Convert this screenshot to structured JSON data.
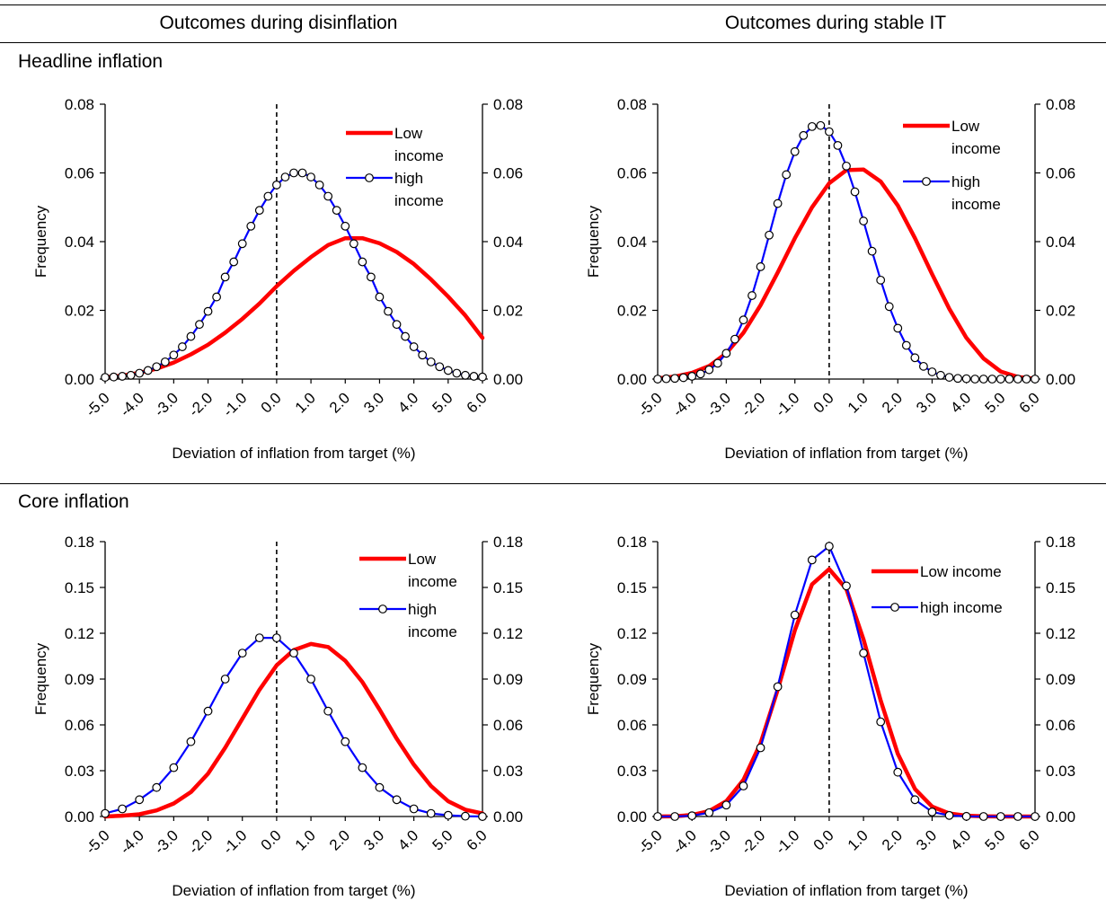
{
  "headers": {
    "left": "Outcomes during disinflation",
    "right": "Outcomes during stable IT"
  },
  "row_labels": {
    "headline": "Headline inflation",
    "core": "Core inflation"
  },
  "colors": {
    "low_income": "#ff0000",
    "high_income": "#0000ff",
    "marker_fill": "#ffffff",
    "axis": "#000000"
  },
  "chart_data": [
    {
      "type": "line",
      "panel": "headline-disinflation",
      "xlabel": "Deviation of inflation from target (%)",
      "ylabel": "Frequency",
      "ylim": [
        0,
        0.08
      ],
      "yticks": [
        "0.00",
        "0.02",
        "0.04",
        "0.06",
        "0.08"
      ],
      "xlim": [
        -5.0,
        6.0
      ],
      "xticks": [
        "-5.0",
        "-4.0",
        "-3.0",
        "-2.0",
        "-1.0",
        "0.0",
        "1.0",
        "2.0",
        "3.0",
        "4.0",
        "5.0",
        "6.0"
      ],
      "target_line_x": 0.0,
      "legend": [
        "Low income",
        "high income"
      ],
      "series": [
        {
          "name": "Low income",
          "x": [
            -5.0,
            -4.5,
            -4.0,
            -3.5,
            -3.0,
            -2.5,
            -2.0,
            -1.5,
            -1.0,
            -0.5,
            0.0,
            0.5,
            1.0,
            1.5,
            2.0,
            2.5,
            3.0,
            3.5,
            4.0,
            4.5,
            5.0,
            5.5,
            6.0
          ],
          "y": [
            0.0005,
            0.001,
            0.0018,
            0.003,
            0.0048,
            0.0072,
            0.01,
            0.0135,
            0.0175,
            0.022,
            0.027,
            0.0315,
            0.0355,
            0.039,
            0.041,
            0.041,
            0.0395,
            0.037,
            0.0335,
            0.029,
            0.024,
            0.0185,
            0.012
          ]
        },
        {
          "name": "high income",
          "x": [
            -5.0,
            -4.75,
            -4.5,
            -4.25,
            -4.0,
            -3.75,
            -3.5,
            -3.25,
            -3.0,
            -2.75,
            -2.5,
            -2.25,
            -2.0,
            -1.75,
            -1.5,
            -1.25,
            -1.0,
            -0.75,
            -0.5,
            -0.25,
            0.0,
            0.25,
            0.5,
            0.75,
            1.0,
            1.25,
            1.5,
            1.75,
            2.0,
            2.25,
            2.5,
            2.75,
            3.0,
            3.25,
            3.5,
            3.75,
            4.0,
            4.25,
            4.5,
            4.75,
            5.0,
            5.25,
            5.5,
            5.75,
            6.0
          ],
          "y": [
            0.0005,
            0.0006,
            0.0008,
            0.0011,
            0.0017,
            0.0025,
            0.0036,
            0.005,
            0.007,
            0.0094,
            0.0124,
            0.0159,
            0.0197,
            0.0239,
            0.0297,
            0.0341,
            0.0394,
            0.0445,
            0.0491,
            0.0532,
            0.0565,
            0.0588,
            0.06,
            0.06,
            0.0588,
            0.0565,
            0.0532,
            0.0491,
            0.0445,
            0.0394,
            0.0341,
            0.0297,
            0.0239,
            0.0197,
            0.0159,
            0.0124,
            0.0094,
            0.007,
            0.005,
            0.0036,
            0.0025,
            0.0017,
            0.0011,
            0.0008,
            0.0006
          ]
        }
      ]
    },
    {
      "type": "line",
      "panel": "headline-stable",
      "xlabel": "Deviation of inflation from target (%)",
      "ylabel": "Frequency",
      "ylim": [
        0,
        0.08
      ],
      "yticks": [
        "0.00",
        "0.02",
        "0.04",
        "0.06",
        "0.08"
      ],
      "xlim": [
        -5.0,
        6.0
      ],
      "xticks": [
        "-5.0",
        "-4.0",
        "-3.0",
        "-2.0",
        "-1.0",
        "0.0",
        "1.0",
        "2.0",
        "3.0",
        "4.0",
        "5.0",
        "6.0"
      ],
      "target_line_x": 0.0,
      "legend": [
        "Low income",
        "high income"
      ],
      "series": [
        {
          "name": "Low income",
          "x": [
            -5.0,
            -4.5,
            -4.0,
            -3.5,
            -3.0,
            -2.5,
            -2.0,
            -1.5,
            -1.0,
            -0.5,
            0.0,
            0.5,
            1.0,
            1.5,
            2.0,
            2.5,
            3.0,
            3.5,
            4.0,
            4.5,
            5.0,
            5.5,
            6.0
          ],
          "y": [
            0.0002,
            0.0007,
            0.0018,
            0.0038,
            0.0075,
            0.0135,
            0.0215,
            0.031,
            0.041,
            0.05,
            0.057,
            0.0608,
            0.061,
            0.0575,
            0.0505,
            0.041,
            0.0305,
            0.0205,
            0.012,
            0.006,
            0.0022,
            0.0006,
            0.0001
          ]
        },
        {
          "name": "high income",
          "x": [
            -5.0,
            -4.75,
            -4.5,
            -4.25,
            -4.0,
            -3.75,
            -3.5,
            -3.25,
            -3.0,
            -2.75,
            -2.5,
            -2.25,
            -2.0,
            -1.75,
            -1.5,
            -1.25,
            -1.0,
            -0.75,
            -0.5,
            -0.25,
            0.0,
            0.25,
            0.5,
            0.75,
            1.0,
            1.25,
            1.5,
            1.75,
            2.0,
            2.25,
            2.5,
            2.75,
            3.0,
            3.25,
            3.5,
            3.75,
            4.0,
            4.25,
            4.5,
            4.75,
            5.0,
            5.25,
            5.5,
            5.75,
            6.0
          ],
          "y": [
            0.0,
            0.0001,
            0.0002,
            0.0004,
            0.0008,
            0.0015,
            0.0027,
            0.0046,
            0.0075,
            0.0116,
            0.0172,
            0.0243,
            0.0327,
            0.0419,
            0.0511,
            0.0595,
            0.0662,
            0.0709,
            0.0735,
            0.0738,
            0.072,
            0.068,
            0.062,
            0.0545,
            0.046,
            0.0372,
            0.0288,
            0.0211,
            0.0148,
            0.0098,
            0.0062,
            0.0037,
            0.0021,
            0.0011,
            0.0005,
            0.0002,
            0.0001,
            0.0,
            0.0,
            0.0,
            0.0,
            0.0,
            0.0,
            0.0,
            0.0
          ]
        }
      ]
    },
    {
      "type": "line",
      "panel": "core-disinflation",
      "xlabel": "Deviation of inflation from target (%)",
      "ylabel": "Frequency",
      "ylim": [
        0,
        0.18
      ],
      "yticks": [
        "0.00",
        "0.03",
        "0.06",
        "0.09",
        "0.12",
        "0.15",
        "0.18"
      ],
      "xlim": [
        -5.0,
        6.0
      ],
      "xticks": [
        "-5.0",
        "-4.0",
        "-3.0",
        "-2.0",
        "-1.0",
        "0.0",
        "1.0",
        "2.0",
        "3.0",
        "4.0",
        "5.0",
        "6.0"
      ],
      "target_line_x": 0.0,
      "legend": [
        "Low income",
        "high income"
      ],
      "series": [
        {
          "name": "Low income",
          "x": [
            -5.0,
            -4.5,
            -4.0,
            -3.5,
            -3.0,
            -2.5,
            -2.0,
            -1.5,
            -1.0,
            -0.5,
            0.0,
            0.5,
            1.0,
            1.5,
            2.0,
            2.5,
            3.0,
            3.5,
            4.0,
            4.5,
            5.0,
            5.5,
            6.0
          ],
          "y": [
            0.0,
            0.0005,
            0.0015,
            0.004,
            0.0085,
            0.016,
            0.028,
            0.045,
            0.064,
            0.083,
            0.099,
            0.109,
            0.113,
            0.111,
            0.102,
            0.088,
            0.07,
            0.051,
            0.034,
            0.02,
            0.01,
            0.0045,
            0.002
          ]
        },
        {
          "name": "high income",
          "x": [
            -5.0,
            -4.5,
            -4.0,
            -3.5,
            -3.0,
            -2.5,
            -2.0,
            -1.5,
            -1.0,
            -0.5,
            0.0,
            0.5,
            1.0,
            1.5,
            2.0,
            2.5,
            3.0,
            3.5,
            4.0,
            4.5,
            5.0,
            5.5,
            6.0
          ],
          "y": [
            0.002,
            0.005,
            0.011,
            0.019,
            0.032,
            0.049,
            0.069,
            0.09,
            0.107,
            0.117,
            0.117,
            0.107,
            0.09,
            0.069,
            0.049,
            0.032,
            0.019,
            0.011,
            0.005,
            0.002,
            0.0008,
            0.0002,
            0.0
          ]
        }
      ]
    },
    {
      "type": "line",
      "panel": "core-stable",
      "xlabel": "Deviation of inflation from target (%)",
      "ylabel": "Frequency",
      "ylim": [
        0,
        0.18
      ],
      "yticks": [
        "0.00",
        "0.03",
        "0.06",
        "0.09",
        "0.12",
        "0.15",
        "0.18"
      ],
      "xlim": [
        -5.0,
        6.0
      ],
      "xticks": [
        "-5.0",
        "-4.0",
        "-3.0",
        "-2.0",
        "-1.0",
        "0.0",
        "1.0",
        "2.0",
        "3.0",
        "4.0",
        "5.0",
        "6.0"
      ],
      "target_line_x": 0.0,
      "legend": [
        "Low income",
        "high income"
      ],
      "series": [
        {
          "name": "Low income",
          "x": [
            -5.0,
            -4.5,
            -4.0,
            -3.5,
            -3.0,
            -2.5,
            -2.0,
            -1.5,
            -1.0,
            -0.5,
            0.0,
            0.5,
            1.0,
            1.5,
            2.0,
            2.5,
            3.0,
            3.5,
            4.0,
            4.5,
            5.0,
            5.5,
            6.0
          ],
          "y": [
            0.0,
            0.0002,
            0.001,
            0.0035,
            0.01,
            0.024,
            0.048,
            0.083,
            0.122,
            0.152,
            0.162,
            0.149,
            0.116,
            0.076,
            0.041,
            0.018,
            0.0065,
            0.002,
            0.0005,
            0.0001,
            0.0,
            0.0,
            0.0
          ]
        },
        {
          "name": "high income",
          "x": [
            -5.0,
            -4.5,
            -4.0,
            -3.5,
            -3.0,
            -2.5,
            -2.0,
            -1.5,
            -1.0,
            -0.5,
            0.0,
            0.5,
            1.0,
            1.5,
            2.0,
            2.5,
            3.0,
            3.5,
            4.0,
            4.5,
            5.0,
            5.5,
            6.0
          ],
          "y": [
            0.0,
            0.0,
            0.0005,
            0.0025,
            0.0075,
            0.02,
            0.045,
            0.085,
            0.132,
            0.168,
            0.177,
            0.151,
            0.107,
            0.062,
            0.029,
            0.011,
            0.003,
            0.0007,
            0.0001,
            0.0,
            0.0,
            0.0,
            0.0
          ]
        }
      ]
    }
  ]
}
